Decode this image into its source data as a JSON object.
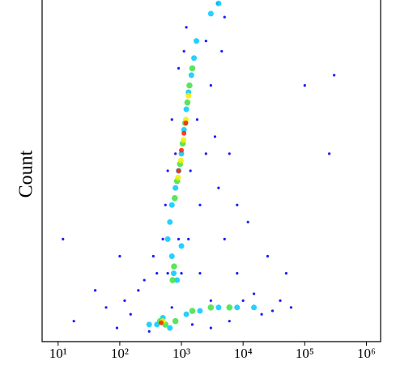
{
  "chart_data": {
    "type": "scatter",
    "y_label": "Count",
    "x_scale": "log",
    "xlim": [
      5.5,
      1700000
    ],
    "ylim": [
      0,
      100
    ],
    "xticks": [
      {
        "value": 10,
        "label": "10¹"
      },
      {
        "value": 100,
        "label": "10²"
      },
      {
        "value": 1000,
        "label": "10³"
      },
      {
        "value": 10000,
        "label": "10⁴"
      },
      {
        "value": 100000,
        "label": "10⁵"
      },
      {
        "value": 1000000,
        "label": "10⁶"
      }
    ],
    "series": [
      {
        "color": "#1a1aff",
        "x": [
          150,
          120,
          90,
          300,
          200,
          400,
          1500,
          3000,
          6000,
          20000,
          40000,
          30000,
          15000,
          8000,
          5000,
          4000,
          3500,
          3000,
          4500,
          5000,
          3800,
          2500,
          1200,
          900,
          700,
          600,
          550,
          500,
          350,
          250,
          100,
          60,
          40,
          2000,
          2500,
          6000,
          8000,
          12000,
          25000,
          50000,
          100000,
          250000,
          300000,
          12,
          18,
          700,
          1000,
          2000,
          1300,
          900,
          1800,
          1400,
          800,
          1100,
          600,
          3000,
          10000,
          60000
        ],
        "y": [
          8,
          12,
          4,
          3,
          15,
          20,
          5,
          4,
          6,
          8,
          12,
          9,
          14,
          20,
          30,
          45,
          60,
          75,
          85,
          95,
          99,
          88,
          92,
          80,
          65,
          50,
          40,
          30,
          25,
          18,
          25,
          10,
          15,
          40,
          55,
          55,
          40,
          35,
          25,
          20,
          75,
          55,
          78,
          30,
          6,
          10,
          20,
          20,
          30,
          30,
          65,
          50,
          55,
          85,
          20,
          12,
          12,
          10
        ]
      },
      {
        "color": "#00c8ff",
        "x": [
          700,
          800,
          900,
          1000,
          1100,
          1200,
          1300,
          1450,
          1600,
          1750,
          650,
          750,
          700,
          850,
          500,
          400,
          300,
          650,
          1200,
          2000,
          4000,
          8000,
          15000,
          3000,
          4000,
          1000,
          600
        ],
        "y": [
          40,
          45,
          50,
          55,
          62,
          68,
          73,
          78,
          83,
          88,
          35,
          20,
          25,
          18,
          7,
          5,
          5,
          4,
          8,
          9,
          10,
          10,
          10,
          96,
          99,
          28,
          30
        ]
      },
      {
        "color": "#40e040",
        "x": [
          780,
          850,
          950,
          1050,
          1150,
          1250,
          1350,
          1500,
          760,
          720,
          450,
          550,
          800,
          1500,
          3000,
          6000
        ],
        "y": [
          42,
          47,
          52,
          58,
          64,
          70,
          75,
          80,
          22,
          18,
          6,
          5,
          6,
          9,
          10,
          10
        ]
      },
      {
        "color": "#f0f000",
        "x": [
          880,
          980,
          1080,
          1180,
          1300,
          500
        ],
        "y": [
          48,
          53,
          59,
          65,
          72,
          6
        ]
      },
      {
        "color": "#ff2000",
        "x": [
          900,
          1000,
          1100,
          1180,
          470
        ],
        "y": [
          50,
          56,
          61,
          64,
          5.5
        ]
      }
    ]
  }
}
